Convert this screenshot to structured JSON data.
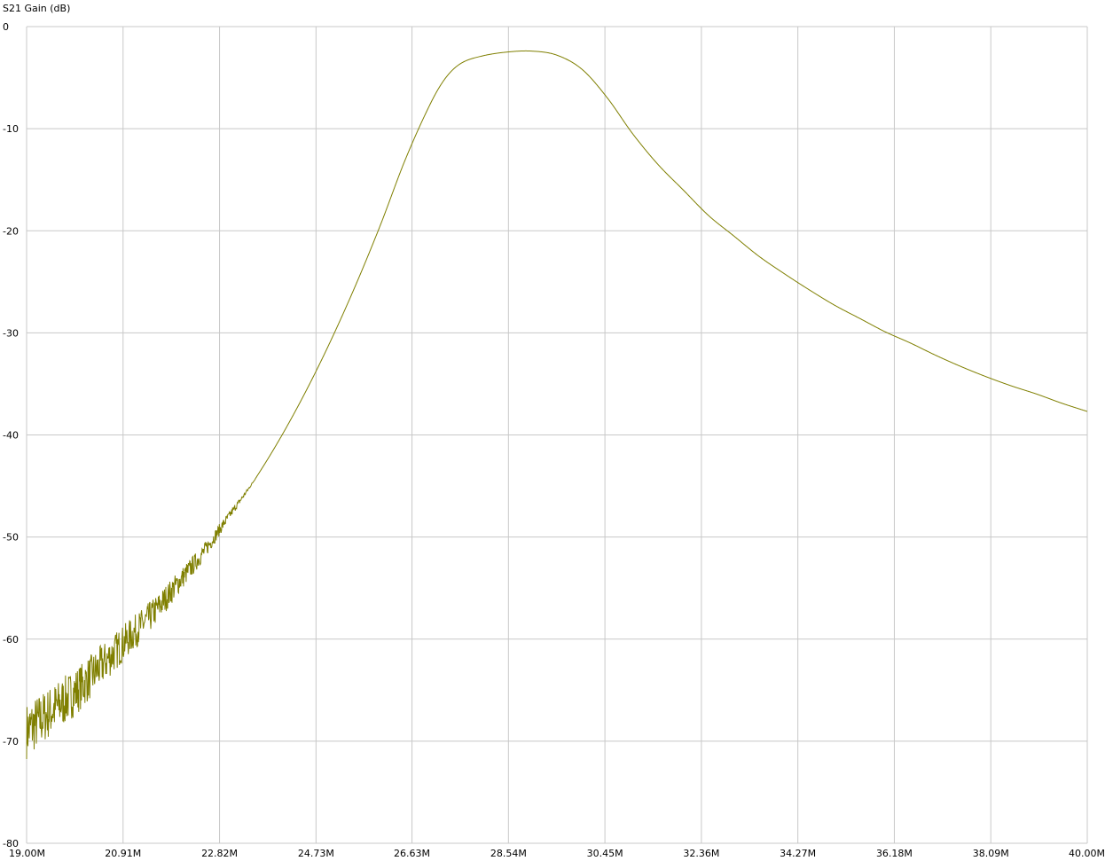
{
  "chart_data": {
    "type": "line",
    "title": "",
    "ylabel": "S21 Gain (dB)",
    "xlabel": "",
    "xlim": [
      19.0,
      40.0
    ],
    "ylim": [
      -80,
      0
    ],
    "x_unit": "MHz",
    "x_ticks": [
      19.0,
      20.91,
      22.82,
      24.73,
      26.63,
      28.54,
      30.45,
      32.36,
      34.27,
      36.18,
      38.09,
      40.0
    ],
    "x_tick_labels": [
      "19.00M",
      "20.91M",
      "22.82M",
      "24.73M",
      "26.63M",
      "28.54M",
      "30.45M",
      "32.36M",
      "34.27M",
      "36.18M",
      "38.09M",
      "40.00M"
    ],
    "y_ticks": [
      0,
      -10,
      -20,
      -30,
      -40,
      -50,
      -60,
      -70,
      -80
    ],
    "y_tick_labels": [
      "0",
      "-10",
      "-20",
      "-30",
      "-40",
      "-50",
      "-60",
      "-70",
      "-80"
    ],
    "grid": true,
    "series": [
      {
        "color": "#7f7f00",
        "x": [
          19.0,
          19.5,
          20.0,
          20.5,
          21.0,
          21.5,
          22.0,
          22.5,
          23.0,
          23.5,
          24.0,
          24.5,
          25.0,
          25.5,
          26.0,
          26.5,
          27.0,
          27.3,
          27.6,
          28.0,
          28.5,
          29.0,
          29.5,
          30.0,
          30.5,
          31.0,
          31.5,
          32.0,
          32.5,
          33.0,
          33.5,
          34.0,
          34.5,
          35.0,
          35.5,
          36.0,
          36.5,
          37.0,
          37.5,
          38.0,
          38.5,
          39.0,
          39.5,
          40.0
        ],
        "y": [
          -69.0,
          -67.0,
          -65.0,
          -62.5,
          -60.0,
          -57.5,
          -54.5,
          -51.5,
          -48.0,
          -44.5,
          -40.5,
          -36.0,
          -31.0,
          -25.5,
          -19.5,
          -13.0,
          -7.5,
          -5.0,
          -3.6,
          -2.9,
          -2.5,
          -2.4,
          -2.8,
          -4.2,
          -7.0,
          -10.5,
          -13.5,
          -16.0,
          -18.5,
          -20.5,
          -22.5,
          -24.2,
          -25.8,
          -27.3,
          -28.6,
          -29.9,
          -31.0,
          -32.2,
          -33.3,
          -34.3,
          -35.2,
          -36.0,
          -36.9,
          -37.7
        ]
      }
    ]
  }
}
